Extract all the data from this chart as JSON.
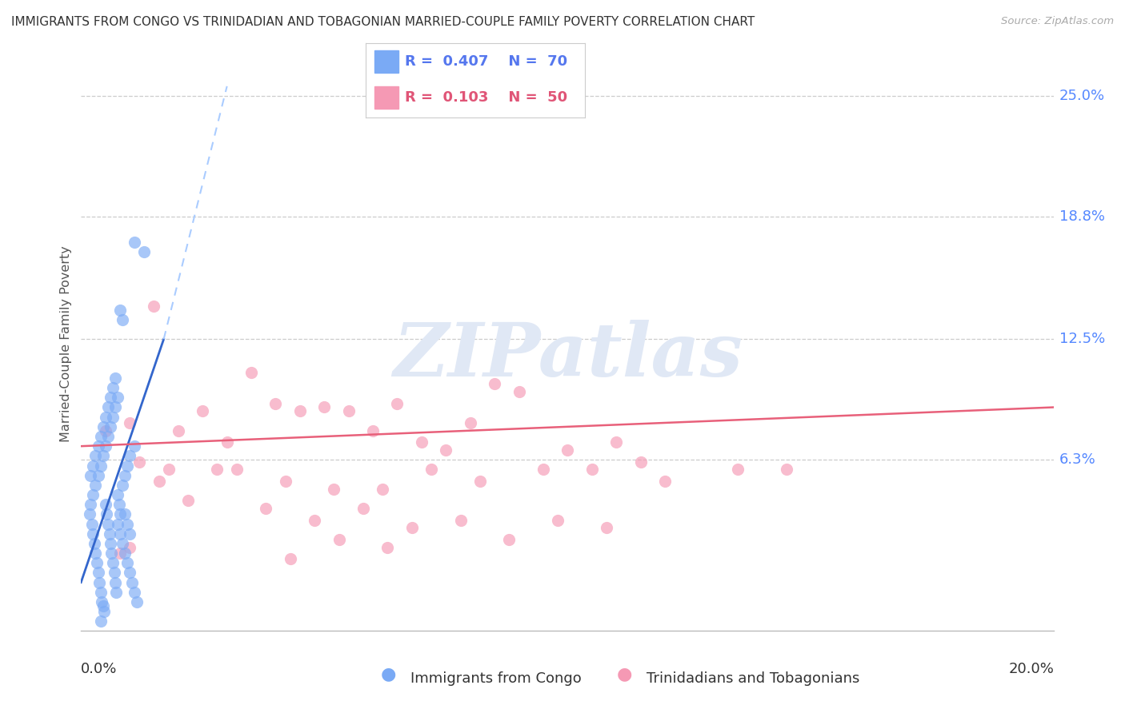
{
  "title": "IMMIGRANTS FROM CONGO VS TRINIDADIAN AND TOBAGONIAN MARRIED-COUPLE FAMILY POVERTY CORRELATION CHART",
  "source": "Source: ZipAtlas.com",
  "xmin": 0.0,
  "xmax": 20.0,
  "ymin": -2.5,
  "ymax": 27.0,
  "yticks": [
    6.3,
    12.5,
    18.8,
    25.0
  ],
  "ytick_labels": [
    "6.3%",
    "12.5%",
    "18.8%",
    "25.0%"
  ],
  "blue_color": "#7aaaf5",
  "pink_color": "#f599b4",
  "blue_line_color": "#3366cc",
  "pink_line_color": "#e8607a",
  "blue_dash_color": "#aaccff",
  "legend_R1": "0.407",
  "legend_N1": "70",
  "legend_R2": "0.103",
  "legend_N2": "50",
  "ylabel": "Married-Couple Family Poverty",
  "series1_label": "Immigrants from Congo",
  "series2_label": "Trinidadians and Tobagonians",
  "congo_x": [
    0.18,
    0.22,
    0.25,
    0.28,
    0.3,
    0.32,
    0.35,
    0.38,
    0.4,
    0.42,
    0.45,
    0.48,
    0.5,
    0.52,
    0.55,
    0.58,
    0.6,
    0.62,
    0.65,
    0.68,
    0.7,
    0.72,
    0.75,
    0.78,
    0.8,
    0.85,
    0.9,
    0.95,
    1.0,
    1.1,
    0.2,
    0.25,
    0.3,
    0.35,
    0.4,
    0.45,
    0.5,
    0.55,
    0.6,
    0.65,
    0.7,
    0.75,
    0.8,
    0.85,
    0.9,
    0.95,
    1.0,
    1.05,
    1.1,
    1.15,
    0.2,
    0.25,
    0.3,
    0.35,
    0.4,
    0.45,
    0.5,
    0.55,
    0.6,
    0.65,
    0.7,
    0.75,
    0.8,
    0.85,
    0.9,
    0.95,
    1.0,
    1.1,
    1.3,
    0.4
  ],
  "congo_y": [
    3.5,
    3.0,
    2.5,
    2.0,
    1.5,
    1.0,
    0.5,
    0.0,
    -0.5,
    -1.0,
    -1.2,
    -1.5,
    4.0,
    3.5,
    3.0,
    2.5,
    2.0,
    1.5,
    1.0,
    0.5,
    0.0,
    -0.5,
    4.5,
    4.0,
    3.5,
    5.0,
    5.5,
    6.0,
    6.5,
    7.0,
    5.5,
    6.0,
    6.5,
    7.0,
    7.5,
    8.0,
    8.5,
    9.0,
    9.5,
    10.0,
    10.5,
    3.0,
    2.5,
    2.0,
    1.5,
    1.0,
    0.5,
    0.0,
    -0.5,
    -1.0,
    4.0,
    4.5,
    5.0,
    5.5,
    6.0,
    6.5,
    7.0,
    7.5,
    8.0,
    8.5,
    9.0,
    9.5,
    14.0,
    13.5,
    3.5,
    3.0,
    2.5,
    17.5,
    17.0,
    -2.0
  ],
  "trini_x": [
    0.5,
    1.0,
    1.5,
    2.0,
    2.5,
    3.0,
    3.5,
    4.0,
    4.5,
    5.0,
    5.5,
    6.0,
    6.5,
    7.0,
    7.5,
    8.0,
    8.5,
    9.0,
    9.5,
    10.0,
    10.5,
    11.0,
    11.5,
    12.0,
    3.2,
    4.2,
    5.2,
    6.2,
    7.2,
    8.2,
    1.2,
    1.8,
    2.8,
    14.5,
    1.6,
    2.2,
    3.8,
    4.8,
    5.8,
    6.8,
    7.8,
    8.8,
    9.8,
    10.8,
    4.3,
    5.3,
    6.3,
    1.0,
    13.5,
    0.8
  ],
  "trini_y": [
    7.8,
    8.2,
    14.2,
    7.8,
    8.8,
    7.2,
    10.8,
    9.2,
    8.8,
    9.0,
    8.8,
    7.8,
    9.2,
    7.2,
    6.8,
    8.2,
    10.2,
    9.8,
    5.8,
    6.8,
    5.8,
    7.2,
    6.2,
    5.2,
    5.8,
    5.2,
    4.8,
    4.8,
    5.8,
    5.2,
    6.2,
    5.8,
    5.8,
    5.8,
    5.2,
    4.2,
    3.8,
    3.2,
    3.8,
    2.8,
    3.2,
    2.2,
    3.2,
    2.8,
    1.2,
    2.2,
    1.8,
    1.8,
    5.8,
    1.5
  ],
  "blue_solid_x1": 0.0,
  "blue_solid_y1": 0.0,
  "blue_solid_x2": 1.7,
  "blue_solid_y2": 12.5,
  "blue_dash_x1": 1.7,
  "blue_dash_y1": 12.5,
  "blue_dash_x2": 3.0,
  "blue_dash_y2": 25.5,
  "pink_x1": 0.0,
  "pink_y1": 7.0,
  "pink_x2": 20.0,
  "pink_y2": 9.0
}
